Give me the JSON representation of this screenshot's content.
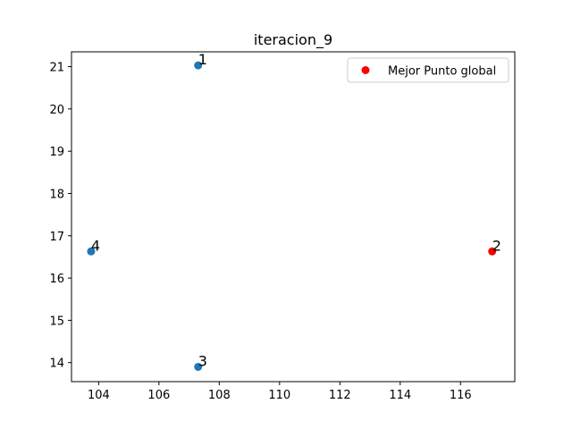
{
  "chart_data": {
    "type": "scatter",
    "title": "iteracion_9",
    "xlabel": "",
    "ylabel": "",
    "xlim": [
      103.1,
      117.8
    ],
    "ylim": [
      13.55,
      21.35
    ],
    "xticks": [
      104,
      106,
      108,
      110,
      112,
      114,
      116
    ],
    "yticks": [
      14,
      15,
      16,
      17,
      18,
      19,
      20,
      21
    ],
    "grid": false,
    "legend_position": "top-right",
    "points": [
      {
        "label": "1",
        "x": 107.3,
        "y": 21.03,
        "color": "#1f77b4"
      },
      {
        "label": "2",
        "x": 117.05,
        "y": 16.63,
        "color": "#ff0000"
      },
      {
        "label": "3",
        "x": 107.3,
        "y": 13.9,
        "color": "#1f77b4"
      },
      {
        "label": "4",
        "x": 103.75,
        "y": 16.63,
        "color": "#1f77b4"
      }
    ],
    "series": [
      {
        "name": "Mejor Punto global",
        "color": "#ff0000"
      }
    ]
  }
}
